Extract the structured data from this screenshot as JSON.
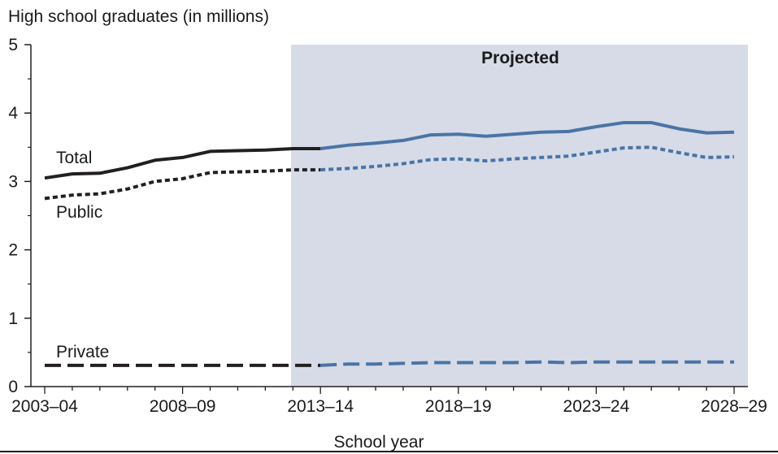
{
  "chart_data": {
    "type": "line",
    "ylabel": "High school graduates (in millions)",
    "xlabel": "School year",
    "annotation": "Projected",
    "ylim": [
      0,
      5
    ],
    "yticks": [
      0,
      1,
      2,
      3,
      4,
      5
    ],
    "projection_start_index": 10,
    "x": [
      "2003–04",
      "2004–05",
      "2005–06",
      "2006–07",
      "2007–08",
      "2008–09",
      "2009–10",
      "2010–11",
      "2011–12",
      "2012–13",
      "2013–14",
      "2014–15",
      "2015–16",
      "2016–17",
      "2017–18",
      "2018–19",
      "2019–20",
      "2020–21",
      "2021–22",
      "2022–23",
      "2023–24",
      "2024–25",
      "2025–26",
      "2026–27",
      "2027–28",
      "2028–29"
    ],
    "xtick_labels": [
      "2003–04",
      "2008–09",
      "2013–14",
      "2018–19",
      "2023–24",
      "2028–29"
    ],
    "xtick_indices": [
      0,
      5,
      10,
      15,
      20,
      25
    ],
    "series": [
      {
        "name": "Total",
        "style": "solid",
        "values": [
          3.05,
          3.11,
          3.12,
          3.2,
          3.31,
          3.35,
          3.44,
          3.45,
          3.46,
          3.48,
          3.48,
          3.53,
          3.56,
          3.6,
          3.68,
          3.69,
          3.66,
          3.69,
          3.72,
          3.73,
          3.8,
          3.86,
          3.86,
          3.77,
          3.71,
          3.72
        ]
      },
      {
        "name": "Public",
        "style": "dotted",
        "values": [
          2.75,
          2.8,
          2.82,
          2.89,
          3.0,
          3.04,
          3.13,
          3.14,
          3.15,
          3.17,
          3.17,
          3.19,
          3.22,
          3.26,
          3.32,
          3.33,
          3.3,
          3.33,
          3.35,
          3.37,
          3.43,
          3.49,
          3.5,
          3.42,
          3.35,
          3.36
        ]
      },
      {
        "name": "Private",
        "style": "dashed",
        "values": [
          0.31,
          0.31,
          0.31,
          0.31,
          0.31,
          0.31,
          0.31,
          0.31,
          0.31,
          0.31,
          0.31,
          0.33,
          0.33,
          0.34,
          0.35,
          0.35,
          0.35,
          0.35,
          0.36,
          0.35,
          0.36,
          0.36,
          0.36,
          0.36,
          0.36,
          0.36
        ]
      }
    ],
    "colors": {
      "actual": "#231f20",
      "projected": "#4a74a6",
      "projection_band": "#d6dbe7",
      "axis": "#231f20"
    }
  }
}
